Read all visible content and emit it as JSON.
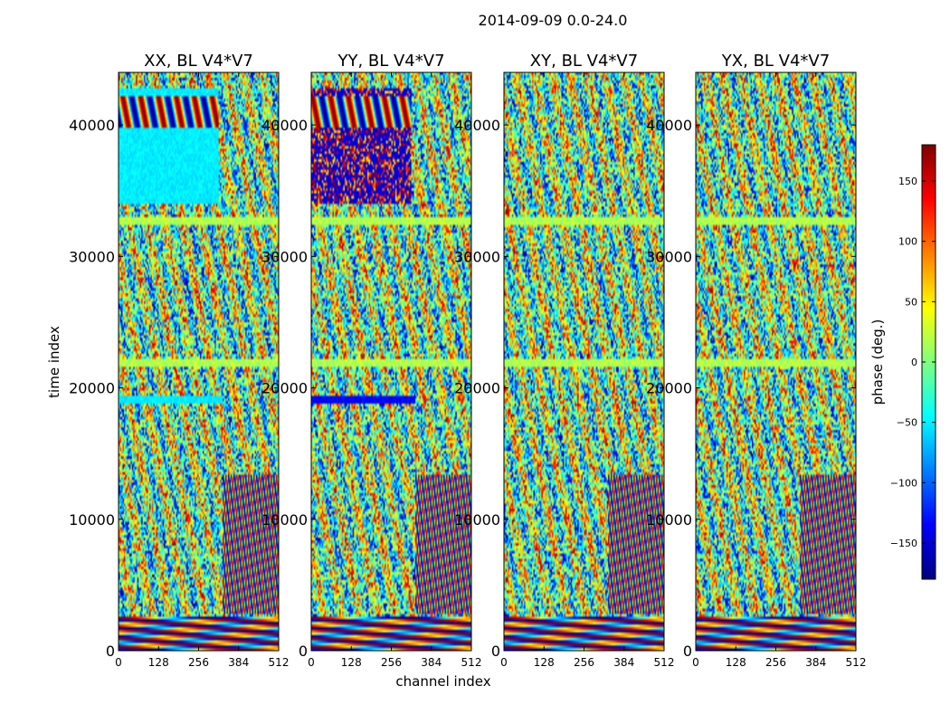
{
  "chart_data": {
    "type": "heatmap",
    "suptitle": "2014-09-09 0.0-24.0",
    "xlabel": "channel index",
    "ylabel": "time index",
    "xlim": [
      0,
      512
    ],
    "ylim": [
      0,
      44000
    ],
    "xticks": [
      0,
      128,
      256,
      384,
      512
    ],
    "yticks": [
      0,
      10000,
      20000,
      30000,
      40000
    ],
    "panels": [
      {
        "title": "XX, BL V4*V7",
        "polarization": "XX"
      },
      {
        "title": "YY, BL V4*V7",
        "polarization": "YY"
      },
      {
        "title": "XY, BL V4*V7",
        "polarization": "XY"
      },
      {
        "title": "YX, BL V4*V7",
        "polarization": "YX"
      }
    ],
    "colorbar": {
      "label": "phase (deg.)",
      "range": [
        -180,
        180
      ],
      "ticks": [
        -150,
        -100,
        -50,
        0,
        50,
        100,
        150
      ],
      "tick_labels": [
        "−150",
        "−100",
        "−50",
        "0",
        "50",
        "100",
        "150"
      ],
      "colormap": [
        "#00007f",
        "#0000ff",
        "#007fff",
        "#00ffff",
        "#7fff7f",
        "#ffff00",
        "#ff7f00",
        "#ff0000",
        "#7f0000"
      ]
    }
  }
}
